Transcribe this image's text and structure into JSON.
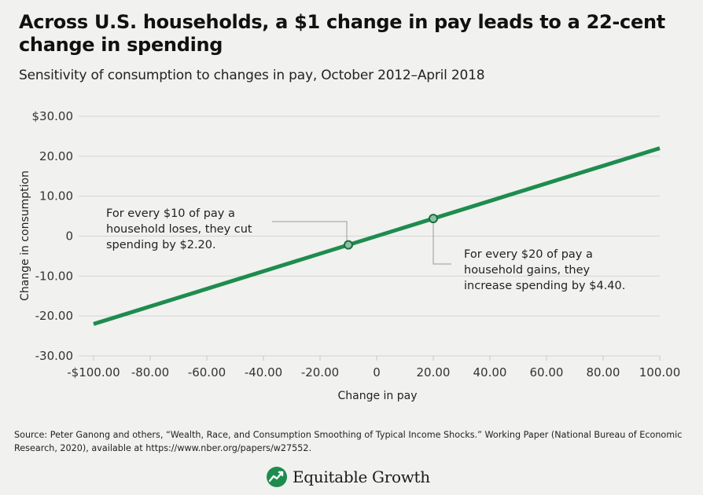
{
  "header": {
    "title": "Across U.S. households, a $1 change in pay leads to a 22-cent change in spending",
    "subtitle": "Sensitivity of consumption to changes in pay, October 2012–April 2018"
  },
  "footer": {
    "source": "Source: Peter Ganong and others, “Wealth, Race, and Consumption Smoothing of Typical Income Shocks.” Working Paper (National Bureau of Economic Research, 2020), available at https://www.nber.org/papers/w27552.",
    "brand_name": "Equitable Growth",
    "brand_icon": "growth-chart-logo-icon"
  },
  "colors": {
    "line": "#1e8c4e",
    "grid": "#d4d4d2",
    "annotation_line": "#999999",
    "background": "#f1f1ef"
  },
  "chart_data": {
    "type": "line",
    "title": "Across U.S. households, a $1 change in pay leads to a 22-cent change in spending",
    "subtitle": "Sensitivity of consumption to changes in pay, October 2012–April 2018",
    "xlabel": "Change in pay",
    "ylabel": "Change in consumption",
    "xlim": [
      -100,
      100
    ],
    "ylim": [
      -30,
      30
    ],
    "x_ticks": [
      -100,
      -80,
      -60,
      -40,
      -20,
      0,
      20,
      40,
      60,
      80,
      100
    ],
    "x_tick_labels": [
      "-$100.00",
      "-80.00",
      "-60.00",
      "-40.00",
      "-20.00",
      "0",
      "20.00",
      "40.00",
      "60.00",
      "80.00",
      "100.00"
    ],
    "y_ticks": [
      30,
      20,
      10,
      0,
      -10,
      -20,
      -30
    ],
    "y_tick_labels": [
      "$30.00",
      "20.00",
      "10.00",
      "0",
      "-10.00",
      "-20.00",
      "-30.00"
    ],
    "grid": true,
    "series": [
      {
        "x": [
          -100,
          100
        ],
        "y": [
          -22,
          22
        ]
      }
    ],
    "highlight_points": [
      {
        "x": -10,
        "y": -2.2
      },
      {
        "x": 20,
        "y": 4.4
      }
    ],
    "annotations": [
      {
        "lines": [
          "For every $10 of pay a",
          "household loses, they cut",
          "spending by $2.20."
        ]
      },
      {
        "lines": [
          "For every $20 of pay a",
          "household gains, they",
          "increase spending by $4.40."
        ]
      }
    ]
  }
}
